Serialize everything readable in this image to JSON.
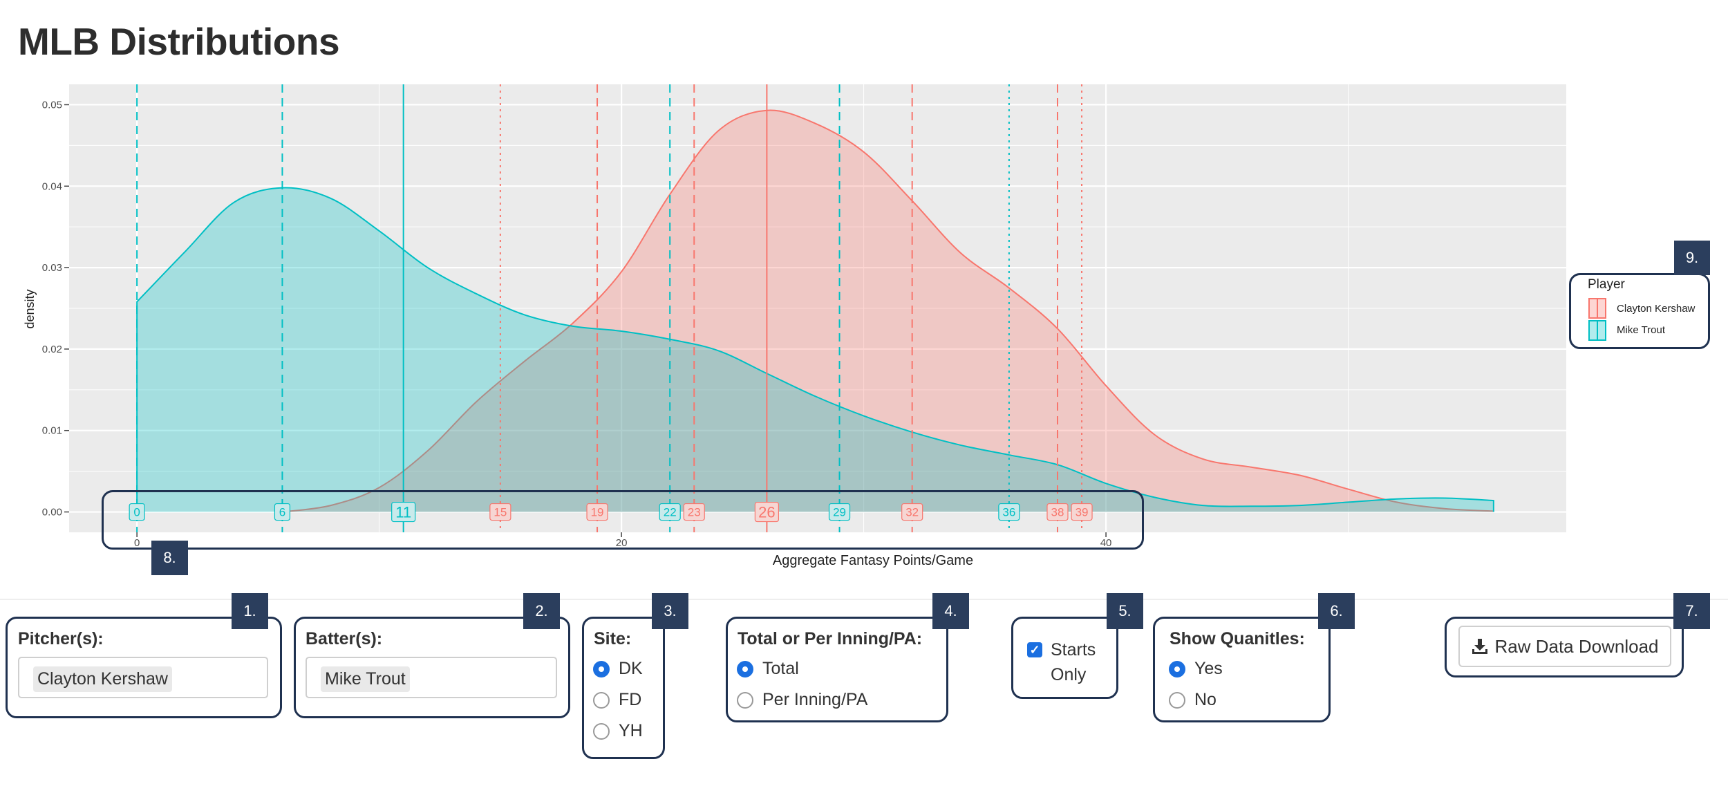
{
  "page": {
    "title": "MLB Distributions"
  },
  "chart_data": {
    "type": "area",
    "xlabel": "Aggregate Fantasy Points/Game",
    "ylabel": "density",
    "xlim": [
      -2.8,
      59
    ],
    "ylim": [
      -0.0025,
      0.0525
    ],
    "x_ticks": [
      0,
      20,
      40
    ],
    "y_ticks": [
      0.0,
      0.01,
      0.02,
      0.03,
      0.04,
      0.05
    ],
    "y_tick_labels": [
      "0.00",
      "0.01",
      "0.02",
      "0.03",
      "0.04",
      "0.05"
    ],
    "grid": true,
    "legend": {
      "title": "Player",
      "position": "right"
    },
    "series": [
      {
        "name": "Clayton Kershaw",
        "color": "#f8766d",
        "fill": "rgba(248,118,109,0.3)",
        "x": [
          6,
          8,
          10,
          12,
          14,
          16,
          18,
          20,
          22,
          24,
          26,
          28,
          30,
          32,
          34,
          36,
          38,
          40,
          42,
          44,
          46,
          48,
          50,
          52,
          54,
          56
        ],
        "y": [
          0.0,
          0.0008,
          0.003,
          0.0075,
          0.0135,
          0.0185,
          0.0232,
          0.0295,
          0.039,
          0.0468,
          0.0493,
          0.0477,
          0.0442,
          0.0382,
          0.0318,
          0.0275,
          0.0225,
          0.0155,
          0.0095,
          0.0065,
          0.0055,
          0.0045,
          0.0028,
          0.0012,
          0.0004,
          0.0001
        ],
        "quantiles": [
          {
            "value": 15,
            "style": "dotted"
          },
          {
            "value": 19,
            "style": "dashed"
          },
          {
            "value": 23,
            "style": "dashed"
          },
          {
            "value": 26,
            "style": "solid"
          },
          {
            "value": 32,
            "style": "dashed"
          },
          {
            "value": 38,
            "style": "dashed"
          },
          {
            "value": 39,
            "style": "dotted"
          }
        ]
      },
      {
        "name": "Mike Trout",
        "color": "#00bfc4",
        "fill": "rgba(0,191,196,0.3)",
        "x": [
          0,
          2,
          4,
          6,
          8,
          10,
          12,
          14,
          16,
          18,
          20,
          22,
          24,
          26,
          28,
          30,
          32,
          34,
          36,
          38,
          40,
          42,
          44,
          46,
          48,
          50,
          52,
          54,
          56
        ],
        "y": [
          0.0258,
          0.032,
          0.038,
          0.0398,
          0.0385,
          0.0345,
          0.03,
          0.0268,
          0.0242,
          0.0228,
          0.0222,
          0.0212,
          0.0198,
          0.017,
          0.0142,
          0.0118,
          0.0098,
          0.0082,
          0.007,
          0.0058,
          0.0035,
          0.0018,
          0.0008,
          0.0007,
          0.0008,
          0.0012,
          0.0016,
          0.0017,
          0.0014
        ],
        "quantiles": [
          {
            "value": 0,
            "style": "dashed"
          },
          {
            "value": 6,
            "style": "dashed"
          },
          {
            "value": 11,
            "style": "solid"
          },
          {
            "value": 22,
            "style": "dashed"
          },
          {
            "value": 29,
            "style": "dashed"
          },
          {
            "value": 36,
            "style": "dotted"
          }
        ]
      }
    ]
  },
  "badges": [
    "1.",
    "2.",
    "3.",
    "4.",
    "5.",
    "6.",
    "7.",
    "8.",
    "9."
  ],
  "pitcher": {
    "label": "Pitcher(s):",
    "value": "Clayton Kershaw"
  },
  "batter": {
    "label": "Batter(s):",
    "value": "Mike Trout"
  },
  "site": {
    "label": "Site:",
    "options": [
      "DK",
      "FD",
      "YH"
    ],
    "selected": "DK"
  },
  "total": {
    "label": "Total or Per Inning/PA:",
    "options": [
      "Total",
      "Per Inning/PA"
    ],
    "selected": "Total"
  },
  "starts": {
    "line1": "Starts",
    "line2": "Only",
    "checked": true
  },
  "quantiles": {
    "label": "Show Quanitles:",
    "options": [
      "Yes",
      "No"
    ],
    "selected": "Yes"
  },
  "download": {
    "label": "Raw Data Download",
    "icon": "download-icon"
  }
}
